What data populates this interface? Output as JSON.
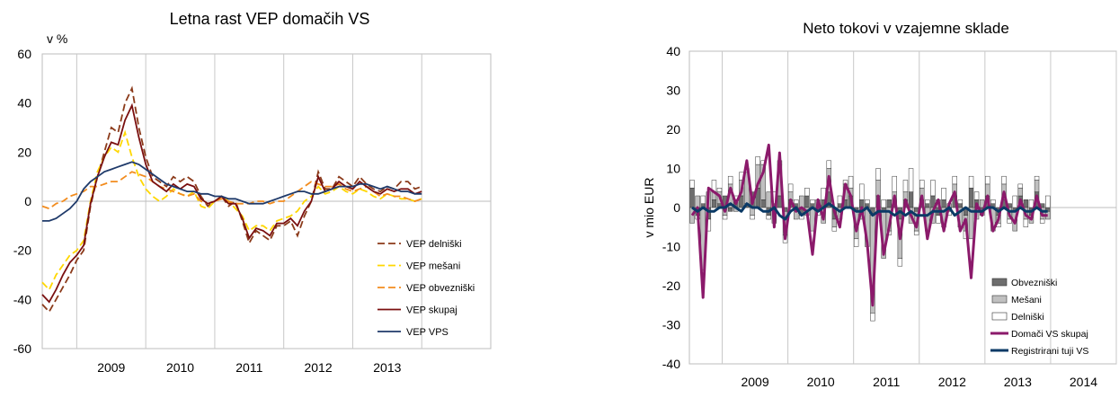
{
  "chart_data": [
    {
      "type": "line",
      "title": "Letna rast VEP domačih VS",
      "ylabel": "v %",
      "xlabel": "",
      "ylim": [
        -60,
        60
      ],
      "yticks": [
        "60",
        "40",
        "20",
        "0",
        "-20",
        "-40",
        "-60"
      ],
      "xticks": [
        "2009",
        "2010",
        "2011",
        "2012",
        "2013"
      ],
      "x_start": 2008.5,
      "x_end": 2015.0,
      "grid": "vertical",
      "legend_position": "bottom-right",
      "series": [
        {
          "name": "VEP delniški",
          "color": "#8b3a1a",
          "dash": "dashed",
          "x": [
            2008.5,
            2008.6,
            2008.7,
            2008.8,
            2008.9,
            2009.0,
            2009.1,
            2009.2,
            2009.3,
            2009.4,
            2009.5,
            2009.6,
            2009.7,
            2009.8,
            2009.9,
            2010.0,
            2010.1,
            2010.2,
            2010.3,
            2010.4,
            2010.5,
            2010.6,
            2010.7,
            2010.8,
            2010.9,
            2011.0,
            2011.1,
            2011.2,
            2011.3,
            2011.4,
            2011.5,
            2011.6,
            2011.7,
            2011.8,
            2011.9,
            2012.0,
            2012.1,
            2012.2,
            2012.3,
            2012.4,
            2012.5,
            2012.6,
            2012.7,
            2012.8,
            2012.9,
            2013.0,
            2013.1,
            2013.2,
            2013.3,
            2013.4,
            2013.5,
            2013.6,
            2013.7,
            2013.8,
            2013.9,
            2014.0
          ],
          "values": [
            -42,
            -45,
            -40,
            -35,
            -30,
            -24,
            -20,
            -2,
            10,
            20,
            30,
            28,
            40,
            46,
            30,
            18,
            10,
            8,
            6,
            10,
            8,
            10,
            8,
            2,
            -2,
            0,
            2,
            -2,
            0,
            -8,
            -17,
            -12,
            -14,
            -16,
            -10,
            -10,
            -8,
            -14,
            -6,
            0,
            12,
            5,
            5,
            10,
            8,
            6,
            10,
            7,
            5,
            4,
            6,
            5,
            8,
            8,
            5,
            6
          ]
        },
        {
          "name": "VEP mešani",
          "color": "#ffd700",
          "dash": "dashed",
          "x": [
            2008.5,
            2008.6,
            2008.7,
            2008.8,
            2008.9,
            2009.0,
            2009.1,
            2009.2,
            2009.3,
            2009.4,
            2009.5,
            2009.6,
            2009.7,
            2009.8,
            2009.9,
            2010.0,
            2010.1,
            2010.2,
            2010.3,
            2010.4,
            2010.5,
            2010.6,
            2010.7,
            2010.8,
            2010.9,
            2011.0,
            2011.1,
            2011.2,
            2011.3,
            2011.4,
            2011.5,
            2011.6,
            2011.7,
            2011.8,
            2011.9,
            2012.0,
            2012.1,
            2012.2,
            2012.3,
            2012.4,
            2012.5,
            2012.6,
            2012.7,
            2012.8,
            2012.9,
            2013.0,
            2013.1,
            2013.2,
            2013.3,
            2013.4,
            2013.5,
            2013.6,
            2013.7,
            2013.8,
            2013.9,
            2014.0
          ],
          "values": [
            -33,
            -36,
            -30,
            -26,
            -22,
            -20,
            -16,
            0,
            12,
            18,
            22,
            20,
            28,
            18,
            10,
            5,
            2,
            0,
            2,
            5,
            3,
            2,
            4,
            -2,
            -3,
            0,
            2,
            0,
            -3,
            -6,
            -12,
            -10,
            -10,
            -12,
            -8,
            -7,
            -6,
            -4,
            0,
            2,
            6,
            3,
            4,
            6,
            4,
            3,
            5,
            4,
            2,
            1,
            3,
            2,
            1,
            1,
            0,
            1
          ]
        },
        {
          "name": "VEP obvezniški",
          "color": "#f28c1e",
          "dash": "dashed",
          "x": [
            2008.5,
            2008.6,
            2008.7,
            2008.8,
            2008.9,
            2009.0,
            2009.1,
            2009.2,
            2009.3,
            2009.4,
            2009.5,
            2009.6,
            2009.7,
            2009.8,
            2009.9,
            2010.0,
            2010.1,
            2010.2,
            2010.3,
            2010.4,
            2010.5,
            2010.6,
            2010.7,
            2010.8,
            2010.9,
            2011.0,
            2011.1,
            2011.2,
            2011.3,
            2011.4,
            2011.5,
            2011.6,
            2011.7,
            2011.8,
            2011.9,
            2012.0,
            2012.1,
            2012.2,
            2012.3,
            2012.4,
            2012.5,
            2012.6,
            2012.7,
            2012.8,
            2012.9,
            2013.0,
            2013.1,
            2013.2,
            2013.3,
            2013.4,
            2013.5,
            2013.6,
            2013.7,
            2013.8,
            2013.9,
            2014.0
          ],
          "values": [
            -2,
            -3,
            -1,
            0,
            2,
            3,
            4,
            6,
            6,
            7,
            8,
            8,
            10,
            12,
            11,
            10,
            8,
            6,
            5,
            4,
            3,
            2,
            3,
            0,
            -1,
            0,
            1,
            0,
            -1,
            -1,
            -1,
            0,
            0,
            -1,
            0,
            0,
            2,
            4,
            6,
            8,
            7,
            6,
            6,
            7,
            5,
            4,
            5,
            6,
            4,
            2,
            3,
            2,
            2,
            1,
            0,
            1
          ]
        },
        {
          "name": "VEP skupaj",
          "color": "#7a0f0f",
          "dash": "solid",
          "x": [
            2008.5,
            2008.6,
            2008.7,
            2008.8,
            2008.9,
            2009.0,
            2009.1,
            2009.2,
            2009.3,
            2009.4,
            2009.5,
            2009.6,
            2009.7,
            2009.8,
            2009.9,
            2010.0,
            2010.1,
            2010.2,
            2010.3,
            2010.4,
            2010.5,
            2010.6,
            2010.7,
            2010.8,
            2010.9,
            2011.0,
            2011.1,
            2011.2,
            2011.3,
            2011.4,
            2011.5,
            2011.6,
            2011.7,
            2011.8,
            2011.9,
            2012.0,
            2012.1,
            2012.2,
            2012.3,
            2012.4,
            2012.5,
            2012.6,
            2012.7,
            2012.8,
            2012.9,
            2013.0,
            2013.1,
            2013.2,
            2013.3,
            2013.4,
            2013.5,
            2013.6,
            2013.7,
            2013.8,
            2013.9,
            2014.0
          ],
          "values": [
            -38,
            -41,
            -36,
            -30,
            -25,
            -22,
            -18,
            -1,
            10,
            18,
            24,
            23,
            33,
            39,
            26,
            15,
            8,
            6,
            4,
            7,
            5,
            7,
            6,
            1,
            -1,
            0,
            2,
            -1,
            -1,
            -7,
            -15,
            -11,
            -12,
            -14,
            -9,
            -9,
            -7,
            -10,
            -4,
            0,
            10,
            4,
            5,
            8,
            6,
            5,
            8,
            6,
            4,
            3,
            5,
            4,
            5,
            5,
            3,
            4
          ]
        },
        {
          "name": "VEP VPS",
          "color": "#1f3a6a",
          "dash": "solid",
          "x": [
            2008.5,
            2008.6,
            2008.7,
            2008.8,
            2008.9,
            2009.0,
            2009.1,
            2009.2,
            2009.3,
            2009.4,
            2009.5,
            2009.6,
            2009.7,
            2009.8,
            2009.9,
            2010.0,
            2010.1,
            2010.2,
            2010.3,
            2010.4,
            2010.5,
            2010.6,
            2010.7,
            2010.8,
            2010.9,
            2011.0,
            2011.1,
            2011.2,
            2011.3,
            2011.4,
            2011.5,
            2011.6,
            2011.7,
            2011.8,
            2011.9,
            2012.0,
            2012.1,
            2012.2,
            2012.3,
            2012.4,
            2012.5,
            2012.6,
            2012.7,
            2012.8,
            2012.9,
            2013.0,
            2013.1,
            2013.2,
            2013.3,
            2013.4,
            2013.5,
            2013.6,
            2013.7,
            2013.8,
            2013.9,
            2014.0
          ],
          "values": [
            -8,
            -8,
            -7,
            -5,
            -3,
            0,
            5,
            8,
            10,
            12,
            13,
            14,
            15,
            16,
            15,
            13,
            11,
            9,
            7,
            6,
            5,
            4,
            4,
            3,
            3,
            2,
            2,
            1,
            1,
            0,
            -1,
            -1,
            -1,
            0,
            1,
            2,
            3,
            4,
            4,
            3,
            3,
            4,
            5,
            6,
            6,
            6,
            7,
            7,
            6,
            5,
            6,
            5,
            4,
            4,
            3,
            3
          ]
        }
      ]
    },
    {
      "type": "bar",
      "title": "Neto tokovi v vzajemne sklade",
      "ylabel": "v mio EUR",
      "xlabel": "",
      "ylim": [
        -40,
        40
      ],
      "yticks": [
        "40",
        "30",
        "20",
        "10",
        "0",
        "-10",
        "-20",
        "-30",
        "-40"
      ],
      "xticks": [
        "2009",
        "2010",
        "2011",
        "2012",
        "2013",
        "2014"
      ],
      "x_start": 2008.5,
      "x_end": 2015.0,
      "grid": "vertical",
      "legend_position": "bottom-right",
      "months_start": 2008.5,
      "month_step": 0.0833,
      "bar_series": [
        {
          "name": "Obvezniški",
          "color": "#6e6e6e",
          "values": [
            5,
            -2,
            1,
            -3,
            2,
            1,
            3,
            -1,
            2,
            3,
            1,
            4,
            5,
            2,
            -2,
            1,
            3,
            -1,
            2,
            1,
            -2,
            3,
            1,
            -1,
            2,
            4,
            -3,
            1,
            2,
            3,
            -1,
            2,
            1,
            -2,
            3,
            -1,
            2,
            1,
            -3,
            2,
            4,
            -1,
            2,
            1,
            3,
            -2,
            2,
            -1,
            3,
            1,
            -2,
            5,
            2,
            -1,
            3,
            1,
            -2,
            2,
            1,
            -1,
            3,
            2,
            -2,
            4,
            1,
            -1
          ]
        },
        {
          "name": "Mešani",
          "color": "#c0c0c0",
          "values": [
            -4,
            3,
            -16,
            4,
            2,
            3,
            -2,
            6,
            -1,
            4,
            8,
            -2,
            6,
            9,
            4,
            -4,
            8,
            -6,
            2,
            -3,
            3,
            -2,
            -6,
            2,
            -4,
            6,
            -2,
            -3,
            4,
            2,
            -7,
            -3,
            -10,
            -25,
            4,
            -12,
            -6,
            3,
            -10,
            2,
            -4,
            -5,
            3,
            -6,
            -4,
            2,
            -5,
            1,
            3,
            -5,
            -4,
            -8,
            -3,
            2,
            3,
            -6,
            -2,
            4,
            -3,
            -5,
            2,
            -3,
            -2,
            3,
            -3,
            -2
          ]
        },
        {
          "name": "Delniški",
          "color": "#ffffff",
          "values": [
            2,
            -1,
            2,
            -3,
            3,
            1,
            -1,
            2,
            1,
            2,
            1,
            -1,
            2,
            1,
            -1,
            3,
            1,
            -2,
            2,
            1,
            -1,
            2,
            1,
            -1,
            3,
            2,
            -1,
            2,
            1,
            3,
            -2,
            4,
            1,
            -2,
            3,
            2,
            -1,
            4,
            -2,
            3,
            6,
            -1,
            2,
            1,
            4,
            -2,
            3,
            -1,
            2,
            1,
            -2,
            3,
            2,
            -1,
            2,
            1,
            -1,
            2,
            -1,
            3,
            1,
            -2,
            2,
            1,
            -1,
            3
          ]
        }
      ],
      "line_series": [
        {
          "name": "Domači VS skupaj",
          "color": "#8b1a6b",
          "width": 3,
          "values": [
            -2,
            0,
            -23,
            5,
            4,
            3,
            -1,
            5,
            1,
            4,
            12,
            1,
            6,
            9,
            16,
            -5,
            14,
            -8,
            2,
            -1,
            0,
            -1,
            -12,
            2,
            -3,
            8,
            -1,
            -5,
            6,
            3,
            -6,
            0,
            -9,
            -25,
            3,
            -12,
            -5,
            3,
            -8,
            2,
            -2,
            -5,
            3,
            -8,
            -1,
            2,
            -6,
            1,
            4,
            -6,
            -3,
            -18,
            1,
            -2,
            3,
            -6,
            -3,
            4,
            -2,
            -4,
            2,
            -2,
            -3,
            3,
            -2,
            -2
          ]
        },
        {
          "name": "Registrirani tuji VS",
          "color": "#0b3a66",
          "width": 3,
          "values": [
            0,
            -1,
            0,
            -1,
            -1,
            0,
            0,
            1,
            0,
            -1,
            1,
            0,
            0,
            -1,
            -1,
            0,
            -2,
            -3,
            -1,
            0,
            -2,
            -1,
            0,
            -1,
            0,
            1,
            0,
            -1,
            0,
            0,
            -1,
            -1,
            0,
            -2,
            -1,
            -1,
            -1,
            -2,
            -1,
            -2,
            -1,
            -2,
            -2,
            -2,
            -1,
            -1,
            -1,
            0,
            -2,
            -1,
            0,
            -1,
            -1,
            -1,
            0,
            0,
            -1,
            0,
            -1,
            -1,
            0,
            -1,
            -1,
            0,
            -1,
            -1
          ]
        }
      ]
    }
  ]
}
